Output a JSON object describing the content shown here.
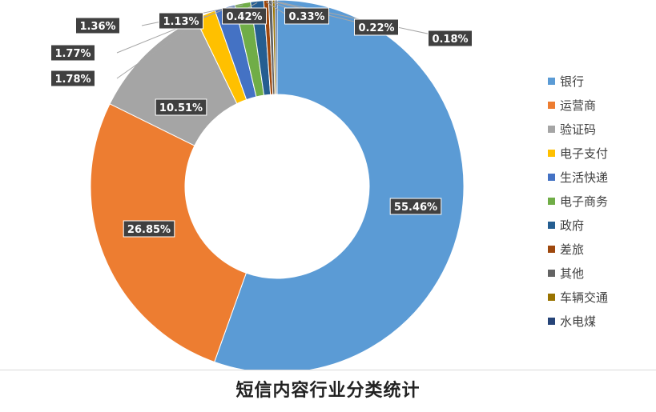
{
  "caption": "短信内容行业分类统计",
  "chart_data": {
    "type": "pie",
    "title": "",
    "style": "doughnut",
    "legend_position": "right",
    "categories": [
      "银行",
      "运营商",
      "验证码",
      "电子支付",
      "生活快递",
      "电子商务",
      "政府",
      "差旅",
      "其他",
      "车辆交通",
      "水电煤"
    ],
    "values": [
      55.46,
      26.85,
      10.51,
      1.78,
      1.77,
      1.36,
      1.13,
      0.42,
      0.33,
      0.22,
      0.18
    ],
    "data_labels": [
      "55.46%",
      "26.85%",
      "10.51%",
      "1.78%",
      "1.77%",
      "1.36%",
      "1.13%",
      "0.42%",
      "0.33%",
      "0.22%",
      "0.18%"
    ],
    "colors": [
      "#5b9bd5",
      "#ed7d31",
      "#a5a5a5",
      "#ffc000",
      "#4472c4",
      "#70ad47",
      "#255e91",
      "#9e480e",
      "#636363",
      "#997300",
      "#264478"
    ]
  }
}
